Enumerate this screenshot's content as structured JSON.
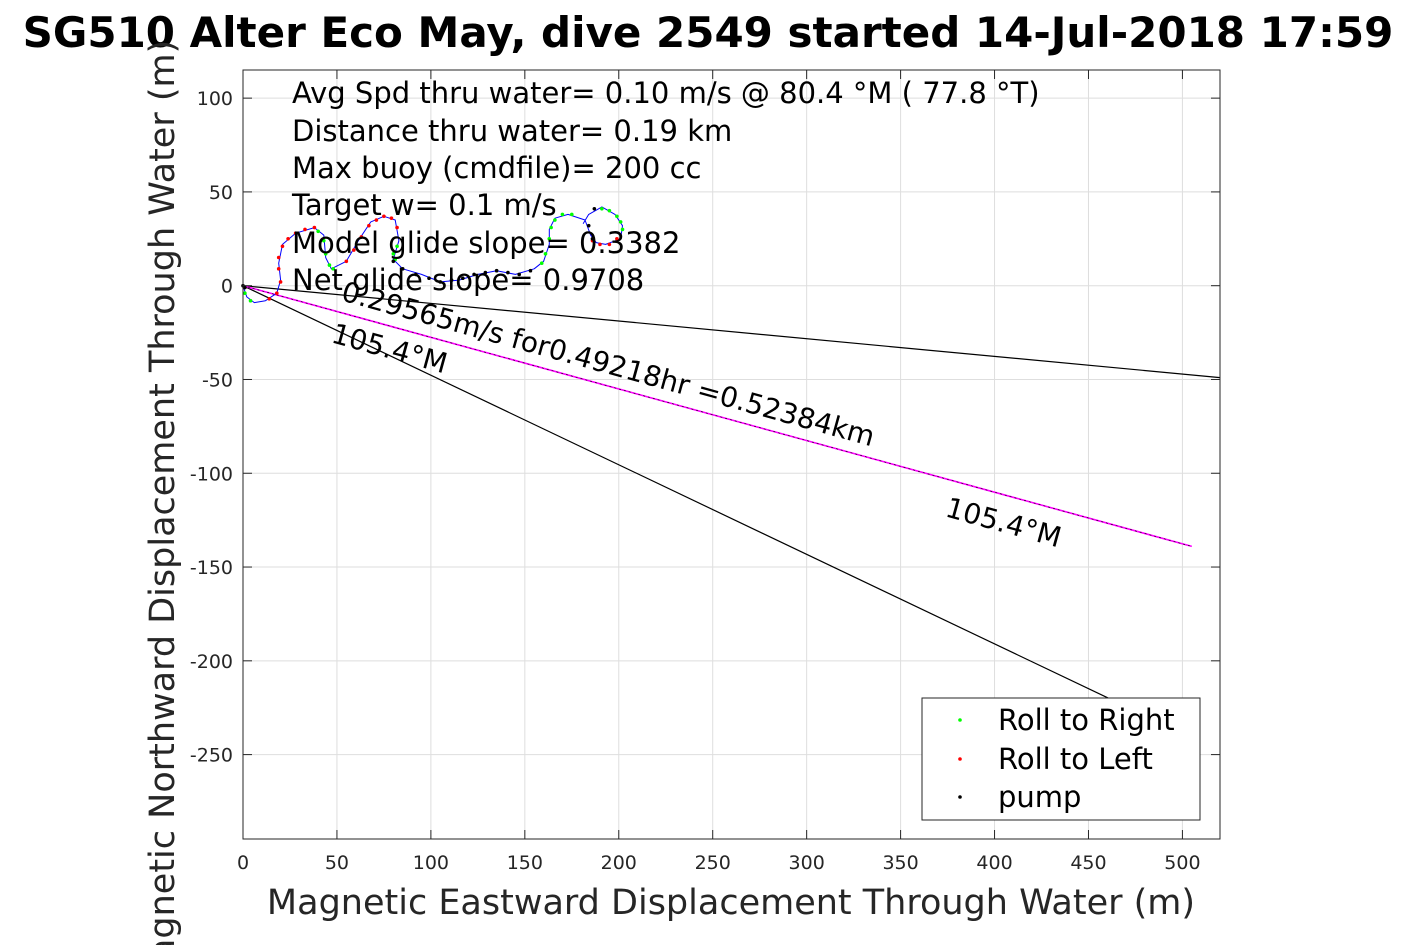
{
  "title": "SG510 Alter Eco May, dive 2549 started 14-Jul-2018 17:59",
  "info_lines": [
    "Avg Spd thru water=  0.10 m/s @  80.4 °M ( 77.8 °T)",
    "Distance thru water=  0.19 km",
    "Max buoy (cmdfile)= 200 cc",
    "Target w= 0.1 m/s",
    "Model glide slope= 0.3382",
    "Net glide slope= 0.9708"
  ],
  "track_label": "0.29565m/s for0.49218hr =0.52384km",
  "heading_labels": [
    "105.4°M",
    "105.4°M"
  ],
  "colors": {
    "roll_right": "#00ff00",
    "roll_left": "#ff0000",
    "pump": "#000000",
    "track_line": "#0000ff",
    "projection": "#ff00ff",
    "axis_text": "#262626",
    "grid": "#dedede"
  },
  "chart_data": {
    "type": "scatter",
    "xlabel": "Magnetic Eastward Displacement Through Water (m)",
    "ylabel": "Magnetic Northward Displacement Through Water (m)",
    "xlim": [
      0,
      520
    ],
    "ylim": [
      -295,
      115
    ],
    "xticks": [
      0,
      50,
      100,
      150,
      200,
      250,
      300,
      350,
      400,
      450,
      500
    ],
    "yticks": [
      100,
      50,
      0,
      -50,
      -100,
      -150,
      -200,
      -250
    ],
    "grid": true,
    "legend_position": "bottom-right",
    "legend": [
      "Roll to Right",
      "Roll to Left",
      "pump"
    ],
    "glider_path": [
      [
        0,
        0
      ],
      [
        2,
        -6
      ],
      [
        6,
        -9
      ],
      [
        12,
        -8
      ],
      [
        18,
        -4
      ],
      [
        20,
        3
      ],
      [
        19,
        12
      ],
      [
        21,
        22
      ],
      [
        28,
        28
      ],
      [
        38,
        31
      ],
      [
        43,
        27
      ],
      [
        44,
        15
      ],
      [
        47,
        9
      ],
      [
        55,
        13
      ],
      [
        62,
        25
      ],
      [
        68,
        34
      ],
      [
        75,
        37
      ],
      [
        81,
        35
      ],
      [
        83,
        24
      ],
      [
        80,
        14
      ],
      [
        85,
        9
      ],
      [
        95,
        6
      ],
      [
        105,
        2
      ],
      [
        115,
        3
      ],
      [
        125,
        6
      ],
      [
        135,
        8
      ],
      [
        145,
        6
      ],
      [
        155,
        9
      ],
      [
        160,
        13
      ],
      [
        163,
        22
      ],
      [
        163,
        30
      ],
      [
        166,
        36
      ],
      [
        173,
        38
      ],
      [
        182,
        35
      ],
      [
        185,
        27
      ],
      [
        188,
        23
      ],
      [
        193,
        22
      ],
      [
        201,
        25
      ],
      [
        202,
        32
      ],
      [
        198,
        38
      ],
      [
        191,
        42
      ],
      [
        184,
        38
      ],
      [
        181,
        33
      ]
    ],
    "series": [
      {
        "name": "Roll to Right",
        "points": [
          [
            1,
            -4
          ],
          [
            4,
            -8
          ],
          [
            40,
            29
          ],
          [
            43,
            24
          ],
          [
            44,
            17
          ],
          [
            46,
            11
          ],
          [
            48,
            9
          ],
          [
            80,
            17
          ],
          [
            82,
            21
          ],
          [
            81,
            14
          ],
          [
            159,
            12
          ],
          [
            161,
            17
          ],
          [
            163,
            25
          ],
          [
            164,
            31
          ],
          [
            166,
            35
          ],
          [
            170,
            38
          ],
          [
            175,
            38
          ],
          [
            191,
            41
          ],
          [
            195,
            40
          ],
          [
            199,
            37
          ],
          [
            201,
            34
          ],
          [
            202,
            30
          ]
        ]
      },
      {
        "name": "Roll to Left",
        "points": [
          [
            14,
            -7
          ],
          [
            18,
            -4
          ],
          [
            20,
            2
          ],
          [
            19,
            9
          ],
          [
            19,
            15
          ],
          [
            21,
            21
          ],
          [
            24,
            25
          ],
          [
            28,
            28
          ],
          [
            33,
            30
          ],
          [
            38,
            31
          ],
          [
            55,
            13
          ],
          [
            59,
            19
          ],
          [
            63,
            26
          ],
          [
            67,
            32
          ],
          [
            71,
            35
          ],
          [
            75,
            37
          ],
          [
            79,
            36
          ],
          [
            82,
            31
          ],
          [
            186,
            24
          ],
          [
            190,
            22
          ],
          [
            195,
            22
          ],
          [
            199,
            25
          ]
        ]
      },
      {
        "name": "pump",
        "points": [
          [
            0,
            0
          ],
          [
            1,
            -1
          ],
          [
            80,
            13
          ],
          [
            85,
            9
          ],
          [
            92,
            6
          ],
          [
            99,
            4
          ],
          [
            105,
            2
          ],
          [
            111,
            3
          ],
          [
            117,
            4
          ],
          [
            123,
            6
          ],
          [
            129,
            7
          ],
          [
            135,
            8
          ],
          [
            141,
            7
          ],
          [
            147,
            6
          ],
          [
            153,
            8
          ],
          [
            184,
            32
          ],
          [
            186,
            25
          ],
          [
            187,
            41
          ]
        ]
      }
    ],
    "projection_line": [
      [
        0,
        0
      ],
      [
        505,
        -139
      ]
    ],
    "heading_lines": [
      [
        [
          0,
          0
        ],
        [
          520,
          -49
        ]
      ],
      [
        [
          0,
          0
        ],
        [
          465,
          -222
        ]
      ]
    ]
  }
}
